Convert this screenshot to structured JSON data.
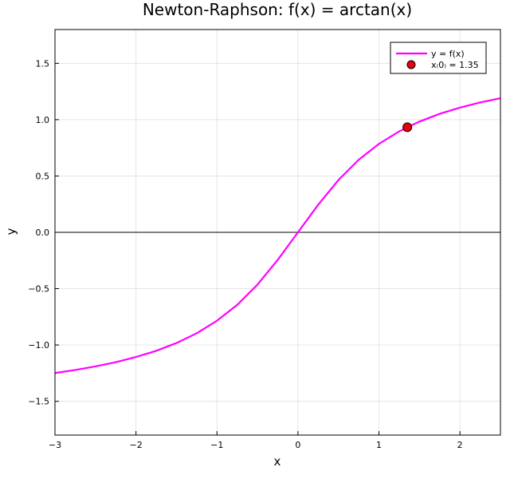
{
  "chart_data": {
    "type": "line",
    "title": "Newton-Raphson: f(x) = arctan(x)",
    "xlabel": "x",
    "ylabel": "y",
    "xlim": [
      -3,
      2.5
    ],
    "ylim": [
      -1.8,
      1.8
    ],
    "xticks": [
      -3,
      -2,
      -1,
      0,
      1,
      2
    ],
    "xtick_labels": [
      "−3",
      "−2",
      "−1",
      "0",
      "1",
      "2"
    ],
    "yticks": [
      -1.5,
      -1.0,
      -0.5,
      0.0,
      0.5,
      1.0,
      1.5
    ],
    "ytick_labels": [
      "−1.5",
      "−1.0",
      "−0.5",
      "0.0",
      "0.5",
      "1.0",
      "1.5"
    ],
    "grid": true,
    "legend_position": "top-right",
    "reference_lines": [
      {
        "axis": "y",
        "value": 0,
        "color": "#000000"
      }
    ],
    "series": [
      {
        "name": "y = f(x)",
        "color": "#ff00ff",
        "kind": "line",
        "x": [
          -3.0,
          -2.75,
          -2.5,
          -2.25,
          -2.0,
          -1.75,
          -1.5,
          -1.25,
          -1.0,
          -0.75,
          -0.5,
          -0.25,
          0.0,
          0.25,
          0.5,
          0.75,
          1.0,
          1.25,
          1.5,
          1.75,
          2.0,
          2.25,
          2.5
        ],
        "y": [
          -1.249,
          -1.222,
          -1.19,
          -1.153,
          -1.107,
          -1.052,
          -0.983,
          -0.896,
          -0.785,
          -0.644,
          -0.464,
          -0.245,
          0.0,
          0.245,
          0.464,
          0.644,
          0.785,
          0.896,
          0.983,
          1.052,
          1.107,
          1.153,
          1.19
        ]
      },
      {
        "name": "x₍0₎ = 1.35",
        "color": "#e8000b",
        "kind": "scatter",
        "x": [
          1.35
        ],
        "y": [
          0.933
        ]
      }
    ]
  }
}
